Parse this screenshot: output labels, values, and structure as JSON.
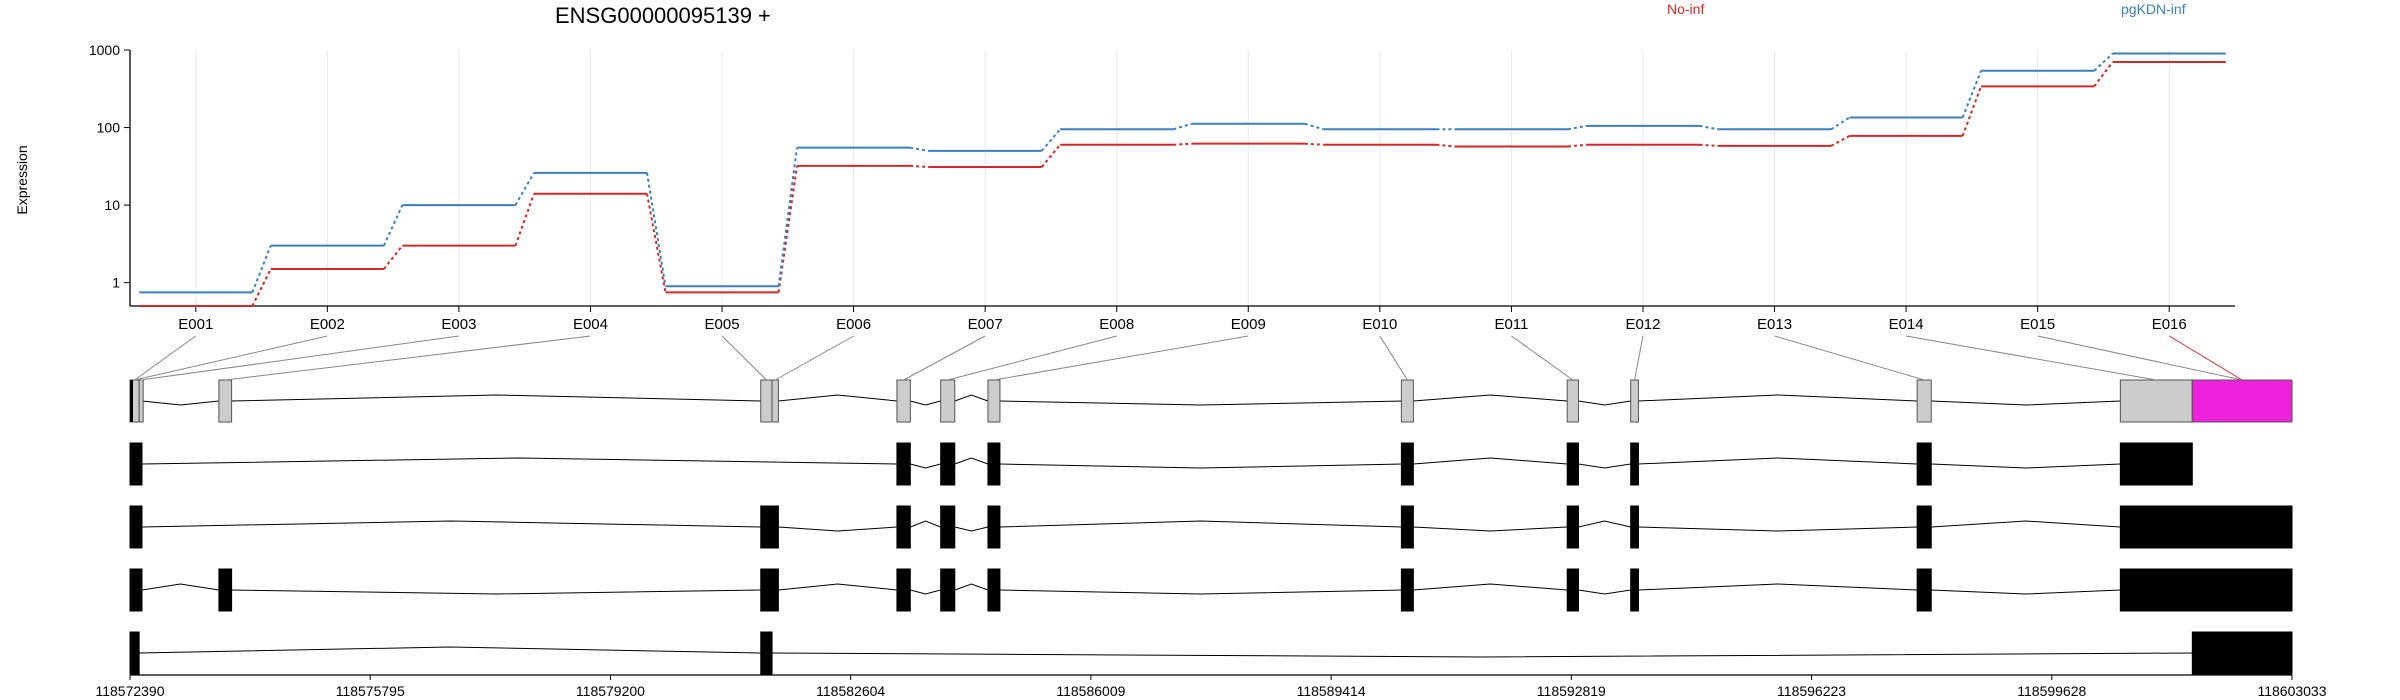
{
  "title": "ENSG00000095139 +",
  "ylabel": "Expression",
  "legend": [
    {
      "label": "No-inf",
      "color": "#d62728"
    },
    {
      "label": "pgKDN-inf",
      "color": "#3a7fc1"
    }
  ],
  "chart_data": {
    "type": "line",
    "title": "ENSG00000095139 +",
    "ylabel": "Expression",
    "yscale": "log",
    "ylim": [
      0.5,
      1000
    ],
    "yticks": [
      "1",
      "10",
      "100",
      "1000"
    ],
    "categories": [
      "E001",
      "E002",
      "E003",
      "E004",
      "E005",
      "E006",
      "E007",
      "E008",
      "E009",
      "E010",
      "E011",
      "E012",
      "E013",
      "E014",
      "E015",
      "E016"
    ],
    "series": [
      {
        "name": "No-inf",
        "color": "#d62728",
        "values": [
          0.5,
          1.5,
          3,
          14,
          0.75,
          32,
          31,
          60,
          62,
          60,
          57,
          60,
          58,
          78,
          340,
          700
        ]
      },
      {
        "name": "pgKDN-inf",
        "color": "#3a7fc1",
        "values": [
          0.75,
          3,
          10,
          26,
          0.9,
          55,
          50,
          95,
          112,
          95,
          95,
          105,
          95,
          135,
          540,
          900
        ]
      }
    ],
    "grid": "vertical"
  },
  "gene_model": {
    "coord_ticks": [
      "118572390",
      "118575795",
      "118579200",
      "118582604",
      "118586009",
      "118589414",
      "118592819",
      "118596223",
      "118599628",
      "118603033"
    ],
    "coord_range": [
      118572390,
      118603033
    ],
    "highlight_color": "#ee22dd",
    "exon_bins": [
      [
        118572390,
        118572520
      ],
      [
        118572520,
        118572560
      ],
      [
        118573650,
        118573830
      ],
      [
        118581330,
        118581490
      ],
      [
        118581490,
        118581580
      ],
      [
        118583260,
        118583450
      ],
      [
        118583880,
        118584080
      ],
      [
        118584550,
        118584720
      ],
      [
        118590410,
        118590580
      ],
      [
        118592760,
        118592920
      ],
      [
        118593660,
        118593770
      ],
      [
        118597720,
        118597920
      ],
      [
        118600600,
        118601620
      ],
      [
        118601620,
        118603033
      ]
    ],
    "exon_labels": [
      "E001",
      "E001",
      "E002",
      "E003",
      "E004",
      "E005",
      "E006",
      "E007",
      "E008",
      "E009",
      "E010",
      "E011",
      "E012",
      "E013",
      "E014",
      "E015",
      "E016"
    ],
    "transcripts": [
      {
        "exons": [
          [
            118572390,
            118572560
          ],
          [
            118583260,
            118583450
          ],
          [
            118583880,
            118584080
          ],
          [
            118584550,
            118584720
          ],
          [
            118590410,
            118590580
          ],
          [
            118592760,
            118592920
          ],
          [
            118593660,
            118593770
          ],
          [
            118597720,
            118597920
          ],
          [
            118600600,
            118601620
          ]
        ]
      },
      {
        "exons": [
          [
            118572390,
            118572560
          ],
          [
            118581330,
            118581580
          ],
          [
            118583260,
            118583450
          ],
          [
            118583880,
            118584080
          ],
          [
            118584550,
            118584720
          ],
          [
            118590410,
            118590580
          ],
          [
            118592760,
            118592920
          ],
          [
            118593660,
            118593770
          ],
          [
            118597720,
            118597920
          ],
          [
            118600600,
            118603033
          ]
        ]
      },
      {
        "exons": [
          [
            118572390,
            118572560
          ],
          [
            118573650,
            118573830
          ],
          [
            118581330,
            118581580
          ],
          [
            118583260,
            118583450
          ],
          [
            118583880,
            118584080
          ],
          [
            118584550,
            118584720
          ],
          [
            118590410,
            118590580
          ],
          [
            118592760,
            118592920
          ],
          [
            118593660,
            118593770
          ],
          [
            118597720,
            118597920
          ],
          [
            118600600,
            118603033
          ]
        ]
      },
      {
        "exons": [
          [
            118572390,
            118572520
          ],
          [
            118581330,
            118581490
          ],
          [
            118601620,
            118603033
          ]
        ]
      }
    ]
  }
}
